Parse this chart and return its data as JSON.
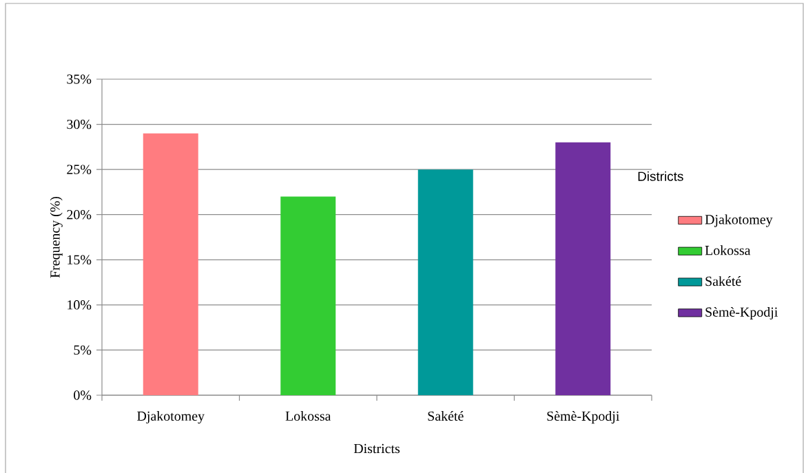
{
  "chart_data": {
    "type": "bar",
    "xlabel": "Districts",
    "ylabel": "Frequency (%)",
    "legend_title": "Districts",
    "categories": [
      "Djakotomey",
      "Lokossa",
      "Sakété",
      "Sèmè-Kpodji"
    ],
    "series": [
      {
        "name": "Djakotomey",
        "color": "#ff7c80",
        "values": [
          29,
          null,
          null,
          null
        ]
      },
      {
        "name": "Lokossa",
        "color": "#33cc33",
        "values": [
          null,
          22,
          null,
          null
        ]
      },
      {
        "name": "Sakété",
        "color": "#009999",
        "values": [
          null,
          null,
          25,
          null
        ]
      },
      {
        "name": "Sèmè-Kpodji",
        "color": "#7030a0",
        "values": [
          null,
          null,
          null,
          28
        ]
      }
    ],
    "ylim": [
      0,
      35
    ],
    "yticks": [
      {
        "value": 0,
        "label": "0%"
      },
      {
        "value": 5,
        "label": "5%"
      },
      {
        "value": 10,
        "label": "10%"
      },
      {
        "value": 15,
        "label": "15%"
      },
      {
        "value": 20,
        "label": "20%"
      },
      {
        "value": 25,
        "label": "25%"
      },
      {
        "value": 30,
        "label": "30%"
      },
      {
        "value": 35,
        "label": "35%"
      }
    ],
    "grid": "y",
    "legend": "right"
  }
}
